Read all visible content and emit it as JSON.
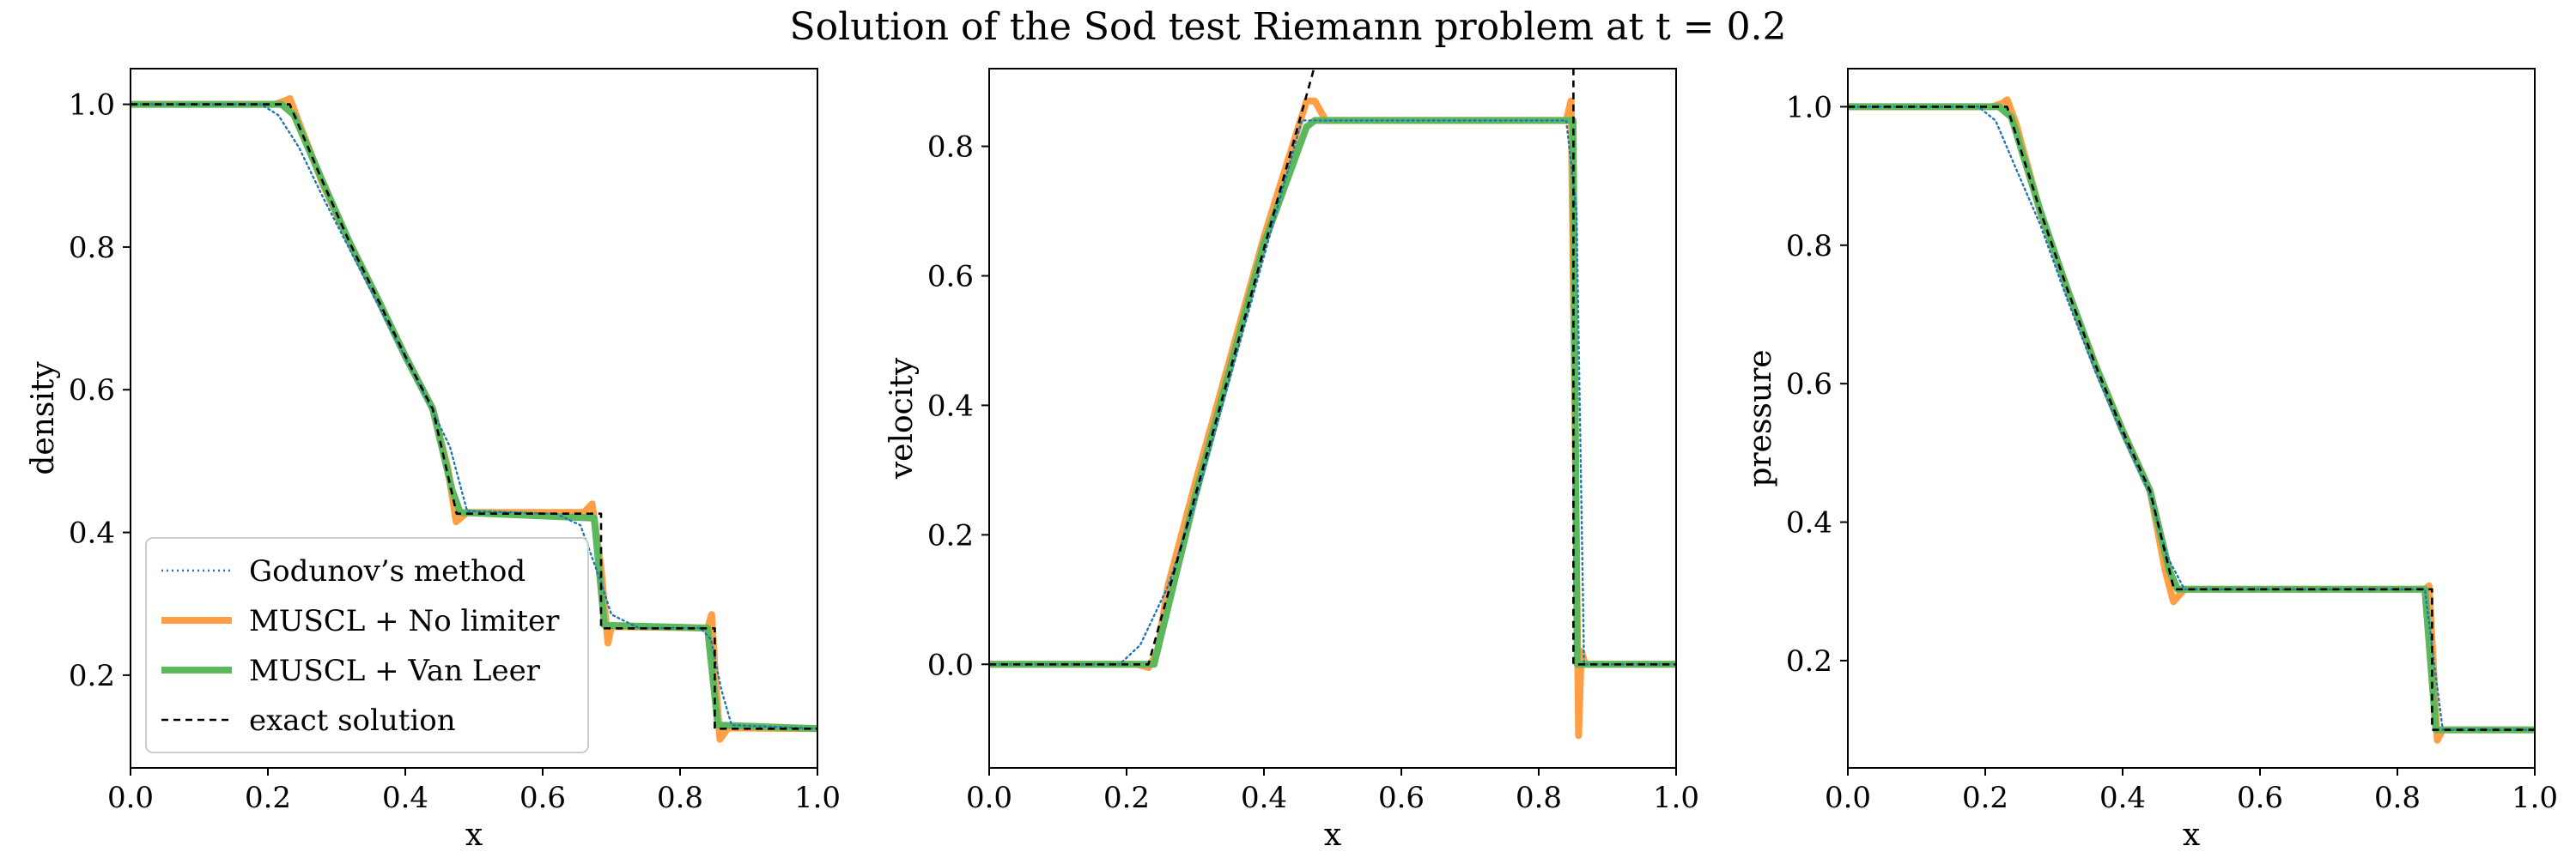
{
  "figure_title": "Solution of the Sod test Riemann problem at t = 0.2",
  "colors": {
    "godunov": "#1f77b4",
    "muscl_no_limiter": "#ff9f45",
    "muscl_van_leer": "#5cb85c",
    "exact": "#000000"
  },
  "legend": {
    "placement": "lower-left (first panel)",
    "entries": [
      {
        "label": "Godunov’s method",
        "style": "dotted",
        "color": "#1f77b4"
      },
      {
        "label": "MUSCL + No limiter",
        "style": "solid-thick",
        "color": "#ff9f45"
      },
      {
        "label": "MUSCL + Van Leer",
        "style": "solid-thick",
        "color": "#5cb85c"
      },
      {
        "label": "exact solution",
        "style": "dashed",
        "color": "#000000"
      }
    ]
  },
  "chart_data": [
    {
      "type": "line",
      "title": "",
      "xlabel": "x",
      "ylabel": "density",
      "xlim": [
        0,
        1
      ],
      "ylim": [
        0.07,
        1.05
      ],
      "xticks": [
        0.0,
        0.2,
        0.4,
        0.6,
        0.8,
        1.0
      ],
      "xtick_labels": [
        "0.0",
        "0.2",
        "0.4",
        "0.6",
        "0.8",
        "1.0"
      ],
      "yticks": [
        0.2,
        0.4,
        0.6,
        0.8,
        1.0
      ],
      "ytick_labels": [
        "0.2",
        "0.4",
        "0.6",
        "0.8",
        "1.0"
      ],
      "grid": false,
      "series": [
        {
          "name": "exact solution",
          "key": "exact",
          "x": [
            0,
            0.2318,
            0.28,
            0.32,
            0.36,
            0.4,
            0.44,
            0.4747,
            0.685,
            0.685,
            0.8505,
            0.8505,
            1.0
          ],
          "y": [
            1.0,
            1.0,
            0.891,
            0.804,
            0.727,
            0.647,
            0.573,
            0.4263,
            0.4263,
            0.2656,
            0.2656,
            0.125,
            0.125
          ]
        },
        {
          "name": "Godunov’s method",
          "key": "godunov",
          "x": [
            0,
            0.19,
            0.215,
            0.245,
            0.28,
            0.32,
            0.36,
            0.4,
            0.44,
            0.465,
            0.49,
            0.62,
            0.655,
            0.685,
            0.7,
            0.74,
            0.83,
            0.845,
            0.86,
            0.875,
            1.0
          ],
          "y": [
            1.0,
            1.0,
            0.985,
            0.94,
            0.87,
            0.795,
            0.72,
            0.645,
            0.57,
            0.52,
            0.43,
            0.426,
            0.41,
            0.33,
            0.285,
            0.266,
            0.266,
            0.25,
            0.18,
            0.13,
            0.125
          ]
        },
        {
          "name": "MUSCL + No limiter",
          "key": "muscl_no_limiter",
          "x": [
            0,
            0.21,
            0.225,
            0.232,
            0.245,
            0.28,
            0.32,
            0.36,
            0.4,
            0.44,
            0.462,
            0.474,
            0.49,
            0.66,
            0.672,
            0.685,
            0.695,
            0.7,
            0.84,
            0.846,
            0.852,
            0.858,
            0.87,
            1.0
          ],
          "y": [
            1.0,
            1.0,
            1.005,
            1.008,
            0.975,
            0.888,
            0.804,
            0.727,
            0.647,
            0.573,
            0.49,
            0.415,
            0.428,
            0.428,
            0.44,
            0.35,
            0.245,
            0.268,
            0.266,
            0.285,
            0.19,
            0.11,
            0.126,
            0.125
          ]
        },
        {
          "name": "MUSCL + Van Leer",
          "key": "muscl_van_leer",
          "x": [
            0,
            0.22,
            0.238,
            0.28,
            0.32,
            0.36,
            0.4,
            0.44,
            0.468,
            0.48,
            0.675,
            0.69,
            0.84,
            0.855,
            1.0
          ],
          "y": [
            1.0,
            1.0,
            0.985,
            0.891,
            0.804,
            0.727,
            0.647,
            0.573,
            0.46,
            0.428,
            0.42,
            0.27,
            0.266,
            0.13,
            0.125
          ]
        }
      ]
    },
    {
      "type": "line",
      "title": "",
      "xlabel": "x",
      "ylabel": "velocity",
      "xlim": [
        0,
        1
      ],
      "ylim": [
        -0.16,
        0.92
      ],
      "xticks": [
        0.0,
        0.2,
        0.4,
        0.6,
        0.8,
        1.0
      ],
      "xtick_labels": [
        "0.0",
        "0.2",
        "0.4",
        "0.6",
        "0.8",
        "1.0"
      ],
      "yticks": [
        0.0,
        0.2,
        0.4,
        0.6,
        0.8
      ],
      "ytick_labels": [
        "0.0",
        "0.2",
        "0.4",
        "0.6",
        "0.8"
      ],
      "grid": false,
      "series": [
        {
          "name": "exact solution",
          "key": "exact",
          "x": [
            0,
            0.2318,
            0.4747,
            0.8505,
            0.8505,
            1.0
          ],
          "y": [
            0.0,
            0.0,
            0.9275,
            0.9275,
            0.0,
            0.0
          ]
        },
        {
          "name": "Godunov’s method",
          "key": "godunov",
          "x": [
            0,
            0.19,
            0.22,
            0.26,
            0.3,
            0.4,
            0.455,
            0.49,
            0.84,
            0.855,
            0.866,
            1.0
          ],
          "y": [
            0.0,
            0.0,
            0.03,
            0.12,
            0.25,
            0.63,
            0.84,
            0.84,
            0.84,
            0.7,
            0.0,
            0.0
          ]
        },
        {
          "name": "MUSCL + No limiter",
          "key": "muscl_no_limiter",
          "x": [
            0,
            0.215,
            0.232,
            0.245,
            0.26,
            0.3,
            0.4,
            0.462,
            0.474,
            0.49,
            0.84,
            0.847,
            0.852,
            0.858,
            0.862,
            0.868,
            0.875,
            1.0
          ],
          "y": [
            0.0,
            0.0,
            -0.005,
            0.02,
            0.12,
            0.28,
            0.66,
            0.87,
            0.87,
            0.84,
            0.84,
            0.87,
            0.45,
            -0.11,
            0.02,
            0.0,
            0.0,
            0.0
          ]
        },
        {
          "name": "MUSCL + Van Leer",
          "key": "muscl_van_leer",
          "x": [
            0,
            0.22,
            0.24,
            0.3,
            0.4,
            0.462,
            0.474,
            0.84,
            0.85,
            0.856,
            1.0
          ],
          "y": [
            0.0,
            0.0,
            0.0,
            0.26,
            0.65,
            0.83,
            0.84,
            0.84,
            0.84,
            0.0,
            0.0
          ]
        }
      ]
    },
    {
      "type": "line",
      "title": "",
      "xlabel": "x",
      "ylabel": "pressure",
      "xlim": [
        0,
        1
      ],
      "ylim": [
        0.045,
        1.055
      ],
      "xticks": [
        0.0,
        0.2,
        0.4,
        0.6,
        0.8,
        1.0
      ],
      "xtick_labels": [
        "0.0",
        "0.2",
        "0.4",
        "0.6",
        "0.8",
        "1.0"
      ],
      "yticks": [
        0.2,
        0.4,
        0.6,
        0.8,
        1.0
      ],
      "ytick_labels": [
        "0.2",
        "0.4",
        "0.6",
        "0.8",
        "1.0"
      ],
      "grid": false,
      "series": [
        {
          "name": "exact solution",
          "key": "exact",
          "x": [
            0,
            0.2318,
            0.28,
            0.32,
            0.36,
            0.4,
            0.44,
            0.4747,
            0.8505,
            0.8505,
            1.0
          ],
          "y": [
            1.0,
            1.0,
            0.85,
            0.735,
            0.628,
            0.532,
            0.445,
            0.303,
            0.303,
            0.1,
            0.1
          ]
        },
        {
          "name": "Godunov’s method",
          "key": "godunov",
          "x": [
            0,
            0.19,
            0.215,
            0.245,
            0.28,
            0.32,
            0.36,
            0.4,
            0.44,
            0.465,
            0.49,
            0.84,
            0.853,
            0.866,
            1.0
          ],
          "y": [
            1.0,
            1.0,
            0.98,
            0.91,
            0.83,
            0.72,
            0.618,
            0.525,
            0.44,
            0.35,
            0.303,
            0.303,
            0.2,
            0.1,
            0.1
          ]
        },
        {
          "name": "MUSCL + No limiter",
          "key": "muscl_no_limiter",
          "x": [
            0,
            0.21,
            0.225,
            0.232,
            0.245,
            0.28,
            0.32,
            0.36,
            0.4,
            0.44,
            0.462,
            0.474,
            0.49,
            0.84,
            0.846,
            0.852,
            0.858,
            0.866,
            1.0
          ],
          "y": [
            1.0,
            1.0,
            1.005,
            1.01,
            0.975,
            0.848,
            0.735,
            0.628,
            0.532,
            0.445,
            0.33,
            0.285,
            0.303,
            0.303,
            0.308,
            0.2,
            0.085,
            0.1,
            0.1
          ]
        },
        {
          "name": "MUSCL + Van Leer",
          "key": "muscl_van_leer",
          "x": [
            0,
            0.22,
            0.238,
            0.28,
            0.32,
            0.36,
            0.4,
            0.44,
            0.468,
            0.48,
            0.84,
            0.856,
            1.0
          ],
          "y": [
            1.0,
            1.0,
            0.985,
            0.85,
            0.735,
            0.628,
            0.532,
            0.445,
            0.33,
            0.303,
            0.303,
            0.1,
            0.1
          ]
        }
      ]
    }
  ]
}
